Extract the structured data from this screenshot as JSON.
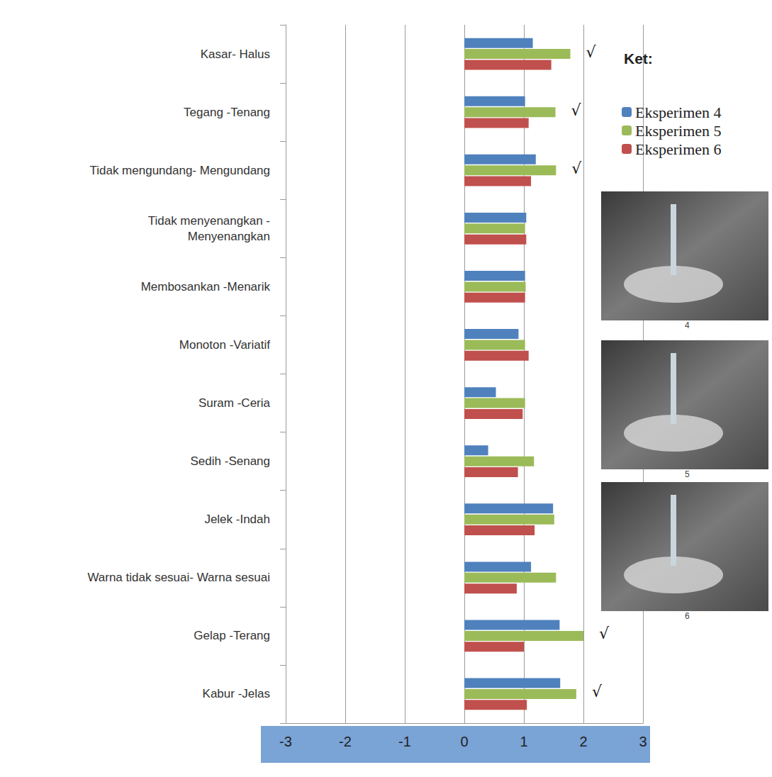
{
  "chart_data": {
    "type": "bar",
    "orientation": "horizontal",
    "categories": [
      "Kasar- Halus",
      "Tegang -Tenang",
      "Tidak mengundang- Mengundang",
      "Tidak menyenangkan -\nMenyenangkan",
      "Membosankan -Menarik",
      "Monoton -Variatif",
      "Suram -Ceria",
      "Sedih -Senang",
      "Jelek -Indah",
      "Warna tidak sesuai- Warna sesuai",
      "Gelap -Terang",
      "Kabur -Jelas"
    ],
    "series": [
      {
        "name": "Eksperimen 4",
        "color": "#4f81bd",
        "values": [
          1.15,
          1.02,
          1.2,
          1.04,
          1.02,
          0.91,
          0.53,
          0.4,
          1.49,
          1.12,
          1.6,
          1.61
        ]
      },
      {
        "name": "Eksperimen 5",
        "color": "#9bbb59",
        "values": [
          1.78,
          1.53,
          1.54,
          1.02,
          1.03,
          1.02,
          1.02,
          1.17,
          1.51,
          1.54,
          2.0,
          1.88
        ]
      },
      {
        "name": "Eksperimen 6",
        "color": "#c0504d",
        "values": [
          1.46,
          1.08,
          1.12,
          1.04,
          1.02,
          1.08,
          0.98,
          0.9,
          1.18,
          0.88,
          1.0,
          1.05
        ]
      }
    ],
    "xlim": [
      -3,
      3
    ],
    "xticks": [
      -3,
      -2,
      -1,
      0,
      1,
      2,
      3
    ],
    "grid": true,
    "legend": "right",
    "legend_title": "Ket:",
    "annotations": [
      {
        "text": "√",
        "category": "Kasar- Halus"
      },
      {
        "text": "√",
        "category": "Tegang -Tenang"
      },
      {
        "text": "√",
        "category": "Tidak mengundang- Mengundang"
      },
      {
        "text": "√",
        "category": "Gelap -Terang"
      },
      {
        "text": "√",
        "category": "Kabur -Jelas"
      }
    ],
    "thumbnails": [
      "4",
      "5",
      "6"
    ]
  }
}
